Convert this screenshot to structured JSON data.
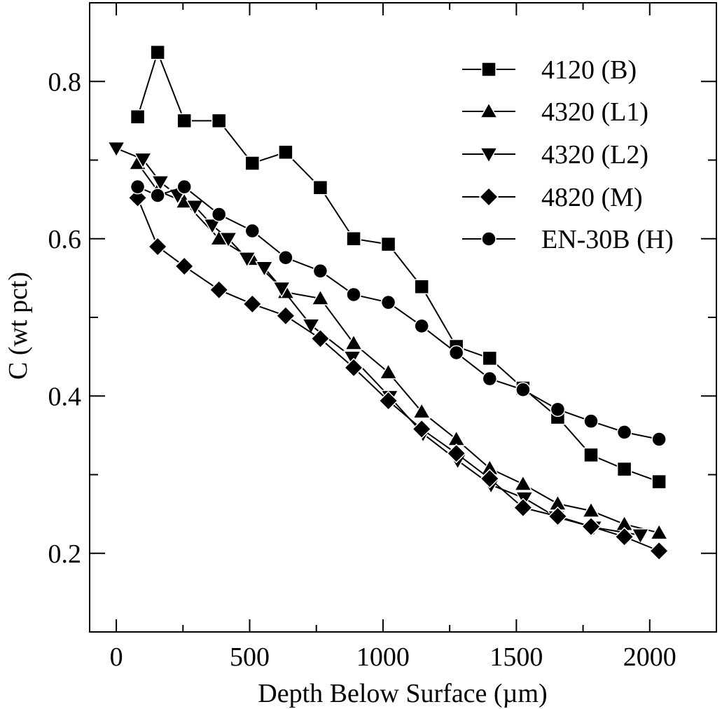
{
  "chart_data": {
    "type": "line",
    "xlabel": "Depth Below Surface (µm)",
    "ylabel": "C (wt pct)",
    "xlim": [
      -100,
      2250
    ],
    "ylim": [
      0.1,
      0.9
    ],
    "xticks": [
      0,
      500,
      1000,
      1500,
      2000
    ],
    "xtick_labels": [
      "0",
      "500",
      "1000",
      "1500",
      "2000"
    ],
    "yticks": [
      0.2,
      0.4,
      0.6,
      0.8
    ],
    "ytick_labels": [
      "0.2",
      "0.4",
      "0.6",
      "0.8"
    ],
    "grid": false,
    "legend_position": "top-right",
    "series": [
      {
        "name": "4120 (B)",
        "marker": "square",
        "x": [
          80,
          155,
          255,
          385,
          510,
          635,
          765,
          890,
          1020,
          1145,
          1275,
          1400,
          1525,
          1655,
          1780,
          1905,
          2035
        ],
        "y": [
          0.755,
          0.837,
          0.75,
          0.75,
          0.696,
          0.71,
          0.665,
          0.6,
          0.593,
          0.539,
          0.463,
          0.448,
          0.41,
          0.373,
          0.325,
          0.307,
          0.291
        ]
      },
      {
        "name": "4320 (L1)",
        "marker": "triangle-up",
        "x": [
          80,
          155,
          255,
          385,
          510,
          635,
          765,
          890,
          1020,
          1145,
          1275,
          1400,
          1525,
          1655,
          1780,
          1905,
          2035
        ],
        "y": [
          0.696,
          0.661,
          0.647,
          0.6,
          0.574,
          0.532,
          0.524,
          0.467,
          0.43,
          0.38,
          0.345,
          0.308,
          0.288,
          0.263,
          0.254,
          0.237,
          0.226
        ]
      },
      {
        "name": "4320 (L2)",
        "marker": "triangle-down",
        "x": [
          0,
          100,
          165,
          230,
          295,
          360,
          420,
          490,
          555,
          620,
          730,
          885,
          1025,
          1150,
          1280,
          1405,
          1530,
          1650,
          1790,
          1965
        ],
        "y": [
          0.715,
          0.701,
          0.672,
          0.655,
          0.641,
          0.617,
          0.6,
          0.575,
          0.563,
          0.537,
          0.49,
          0.449,
          0.399,
          0.352,
          0.318,
          0.287,
          0.27,
          0.246,
          0.233,
          0.223
        ]
      },
      {
        "name": "4820 (M)",
        "marker": "diamond",
        "x": [
          80,
          155,
          255,
          385,
          510,
          635,
          765,
          890,
          1020,
          1145,
          1275,
          1400,
          1525,
          1655,
          1780,
          1905,
          2035
        ],
        "y": [
          0.652,
          0.59,
          0.565,
          0.535,
          0.517,
          0.502,
          0.473,
          0.436,
          0.394,
          0.358,
          0.327,
          0.295,
          0.258,
          0.247,
          0.234,
          0.221,
          0.203
        ]
      },
      {
        "name": "EN-30B (H)",
        "marker": "circle",
        "x": [
          80,
          155,
          255,
          385,
          510,
          635,
          765,
          890,
          1020,
          1145,
          1275,
          1400,
          1525,
          1655,
          1780,
          1905,
          2035
        ],
        "y": [
          0.666,
          0.655,
          0.666,
          0.631,
          0.61,
          0.576,
          0.559,
          0.529,
          0.519,
          0.489,
          0.455,
          0.422,
          0.408,
          0.383,
          0.368,
          0.354,
          0.345
        ]
      }
    ]
  }
}
